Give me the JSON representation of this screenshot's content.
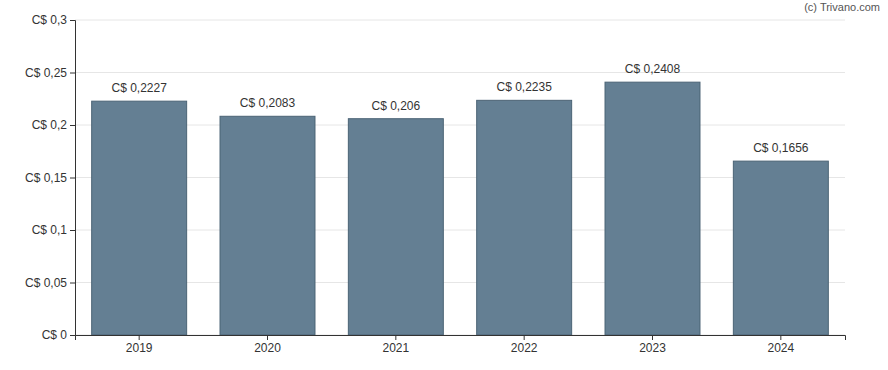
{
  "chart_data": {
    "type": "bar",
    "annotations": [
      "(c) Trivano.com"
    ],
    "categories": [
      "2019",
      "2020",
      "2021",
      "2022",
      "2023",
      "2024"
    ],
    "values": [
      0.2227,
      0.2083,
      0.206,
      0.2235,
      0.2408,
      0.1656
    ],
    "value_labels": [
      "C$ 0,2227",
      "C$ 0,2083",
      "C$ 0,206",
      "C$ 0,2235",
      "C$ 0,2408",
      "C$ 0,1656"
    ],
    "data_labels": true,
    "color": "#647f93",
    "ylim": [
      0,
      0.3
    ],
    "yticks": [
      {
        "value": 0,
        "label": "C$ 0"
      },
      {
        "value": 0.05,
        "label": "C$ 0,05"
      },
      {
        "value": 0.1,
        "label": "C$ 0,1"
      },
      {
        "value": 0.15,
        "label": "C$ 0,15"
      },
      {
        "value": 0.2,
        "label": "C$ 0,2"
      },
      {
        "value": 0.25,
        "label": "C$ 0,25"
      },
      {
        "value": 0.3,
        "label": "C$ 0,3"
      }
    ],
    "grid": true
  }
}
